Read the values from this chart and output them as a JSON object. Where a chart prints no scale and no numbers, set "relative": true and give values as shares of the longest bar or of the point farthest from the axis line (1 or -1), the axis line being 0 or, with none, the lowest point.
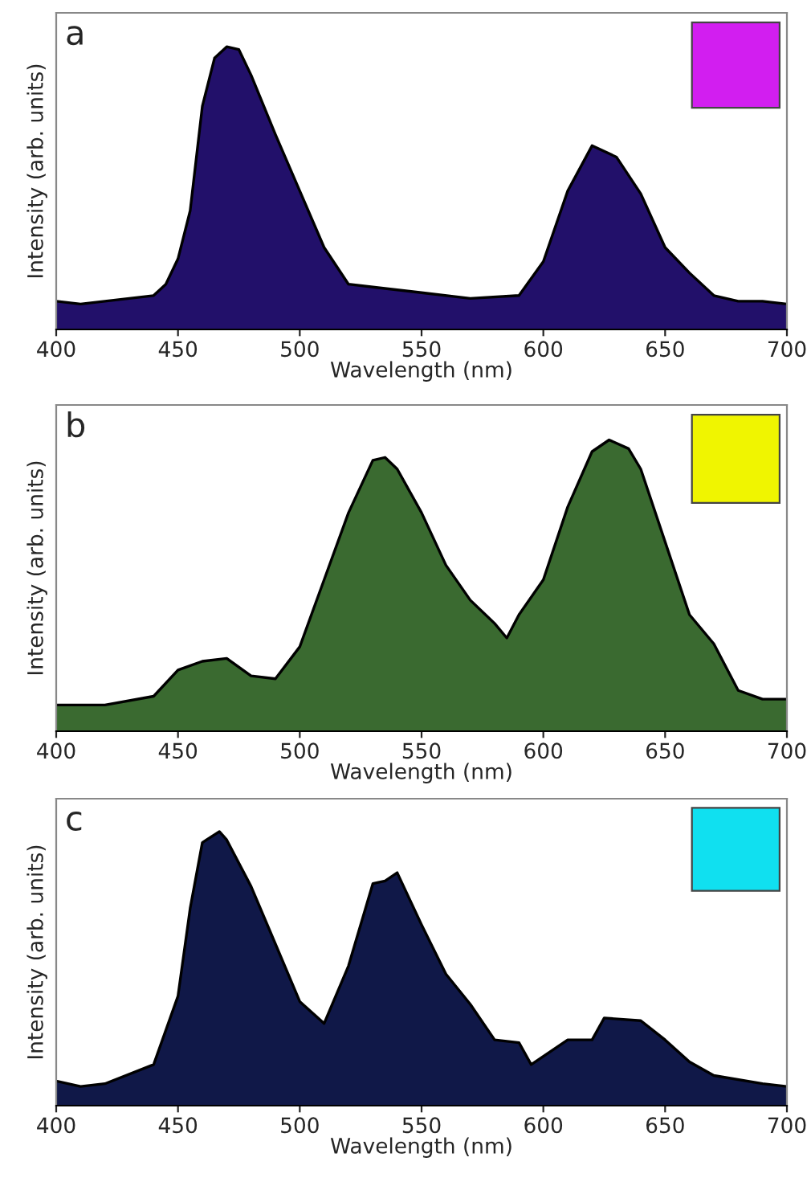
{
  "chart_data": [
    {
      "type": "area",
      "title": "a",
      "xlabel": "Wavelength (nm)",
      "ylabel": "Intensity (arb. units)",
      "relative": true,
      "xlim": [
        400,
        700
      ],
      "xticks": [
        400,
        450,
        500,
        550,
        600,
        650,
        700
      ],
      "grid": false,
      "legend": false,
      "series": [
        {
          "color": "#22106a",
          "x": [
            400,
            410,
            420,
            440,
            445,
            450,
            455,
            460,
            465,
            470,
            475,
            480,
            490,
            500,
            510,
            520,
            530,
            550,
            570,
            590,
            600,
            610,
            620,
            630,
            640,
            650,
            660,
            670,
            680,
            690,
            700
          ],
          "values": [
            0.1,
            0.09,
            0.1,
            0.12,
            0.16,
            0.25,
            0.42,
            0.79,
            0.96,
            1.0,
            0.99,
            0.9,
            0.69,
            0.49,
            0.29,
            0.16,
            0.15,
            0.13,
            0.11,
            0.12,
            0.24,
            0.49,
            0.65,
            0.61,
            0.48,
            0.29,
            0.2,
            0.12,
            0.1,
            0.1,
            0.09
          ]
        }
      ]
    },
    {
      "type": "area",
      "title": "b",
      "xlabel": "Wavelength (nm)",
      "ylabel": "Intensity (arb. units)",
      "relative": true,
      "xlim": [
        400,
        700
      ],
      "xticks": [
        400,
        450,
        500,
        550,
        600,
        650,
        700
      ],
      "grid": false,
      "legend": false,
      "series": [
        {
          "color": "#3a6a30",
          "x": [
            400,
            420,
            440,
            450,
            460,
            470,
            480,
            490,
            500,
            510,
            520,
            530,
            535,
            540,
            550,
            560,
            570,
            580,
            585,
            590,
            600,
            610,
            620,
            627,
            635,
            640,
            650,
            660,
            670,
            680,
            690,
            700
          ],
          "values": [
            0.09,
            0.09,
            0.12,
            0.21,
            0.24,
            0.25,
            0.19,
            0.18,
            0.29,
            0.52,
            0.75,
            0.93,
            0.94,
            0.9,
            0.75,
            0.57,
            0.45,
            0.37,
            0.32,
            0.4,
            0.52,
            0.77,
            0.96,
            1.0,
            0.97,
            0.9,
            0.65,
            0.4,
            0.3,
            0.14,
            0.11,
            0.11
          ]
        }
      ]
    },
    {
      "type": "area",
      "title": "c",
      "xlabel": "Wavelength (nm)",
      "ylabel": "Intensity (arb. units)",
      "relative": true,
      "xlim": [
        400,
        700
      ],
      "xticks": [
        400,
        450,
        500,
        550,
        600,
        650,
        700
      ],
      "grid": false,
      "legend": false,
      "series": [
        {
          "color": "#101848",
          "x": [
            400,
            410,
            420,
            440,
            450,
            455,
            460,
            467,
            470,
            480,
            490,
            500,
            510,
            520,
            530,
            535,
            540,
            550,
            560,
            570,
            580,
            590,
            595,
            610,
            620,
            625,
            640,
            650,
            660,
            670,
            690,
            700
          ],
          "values": [
            0.09,
            0.07,
            0.08,
            0.15,
            0.4,
            0.72,
            0.96,
            1.0,
            0.97,
            0.8,
            0.59,
            0.38,
            0.3,
            0.51,
            0.81,
            0.82,
            0.85,
            0.66,
            0.48,
            0.37,
            0.24,
            0.23,
            0.15,
            0.24,
            0.24,
            0.32,
            0.31,
            0.24,
            0.16,
            0.11,
            0.08,
            0.07
          ]
        }
      ]
    }
  ]
}
